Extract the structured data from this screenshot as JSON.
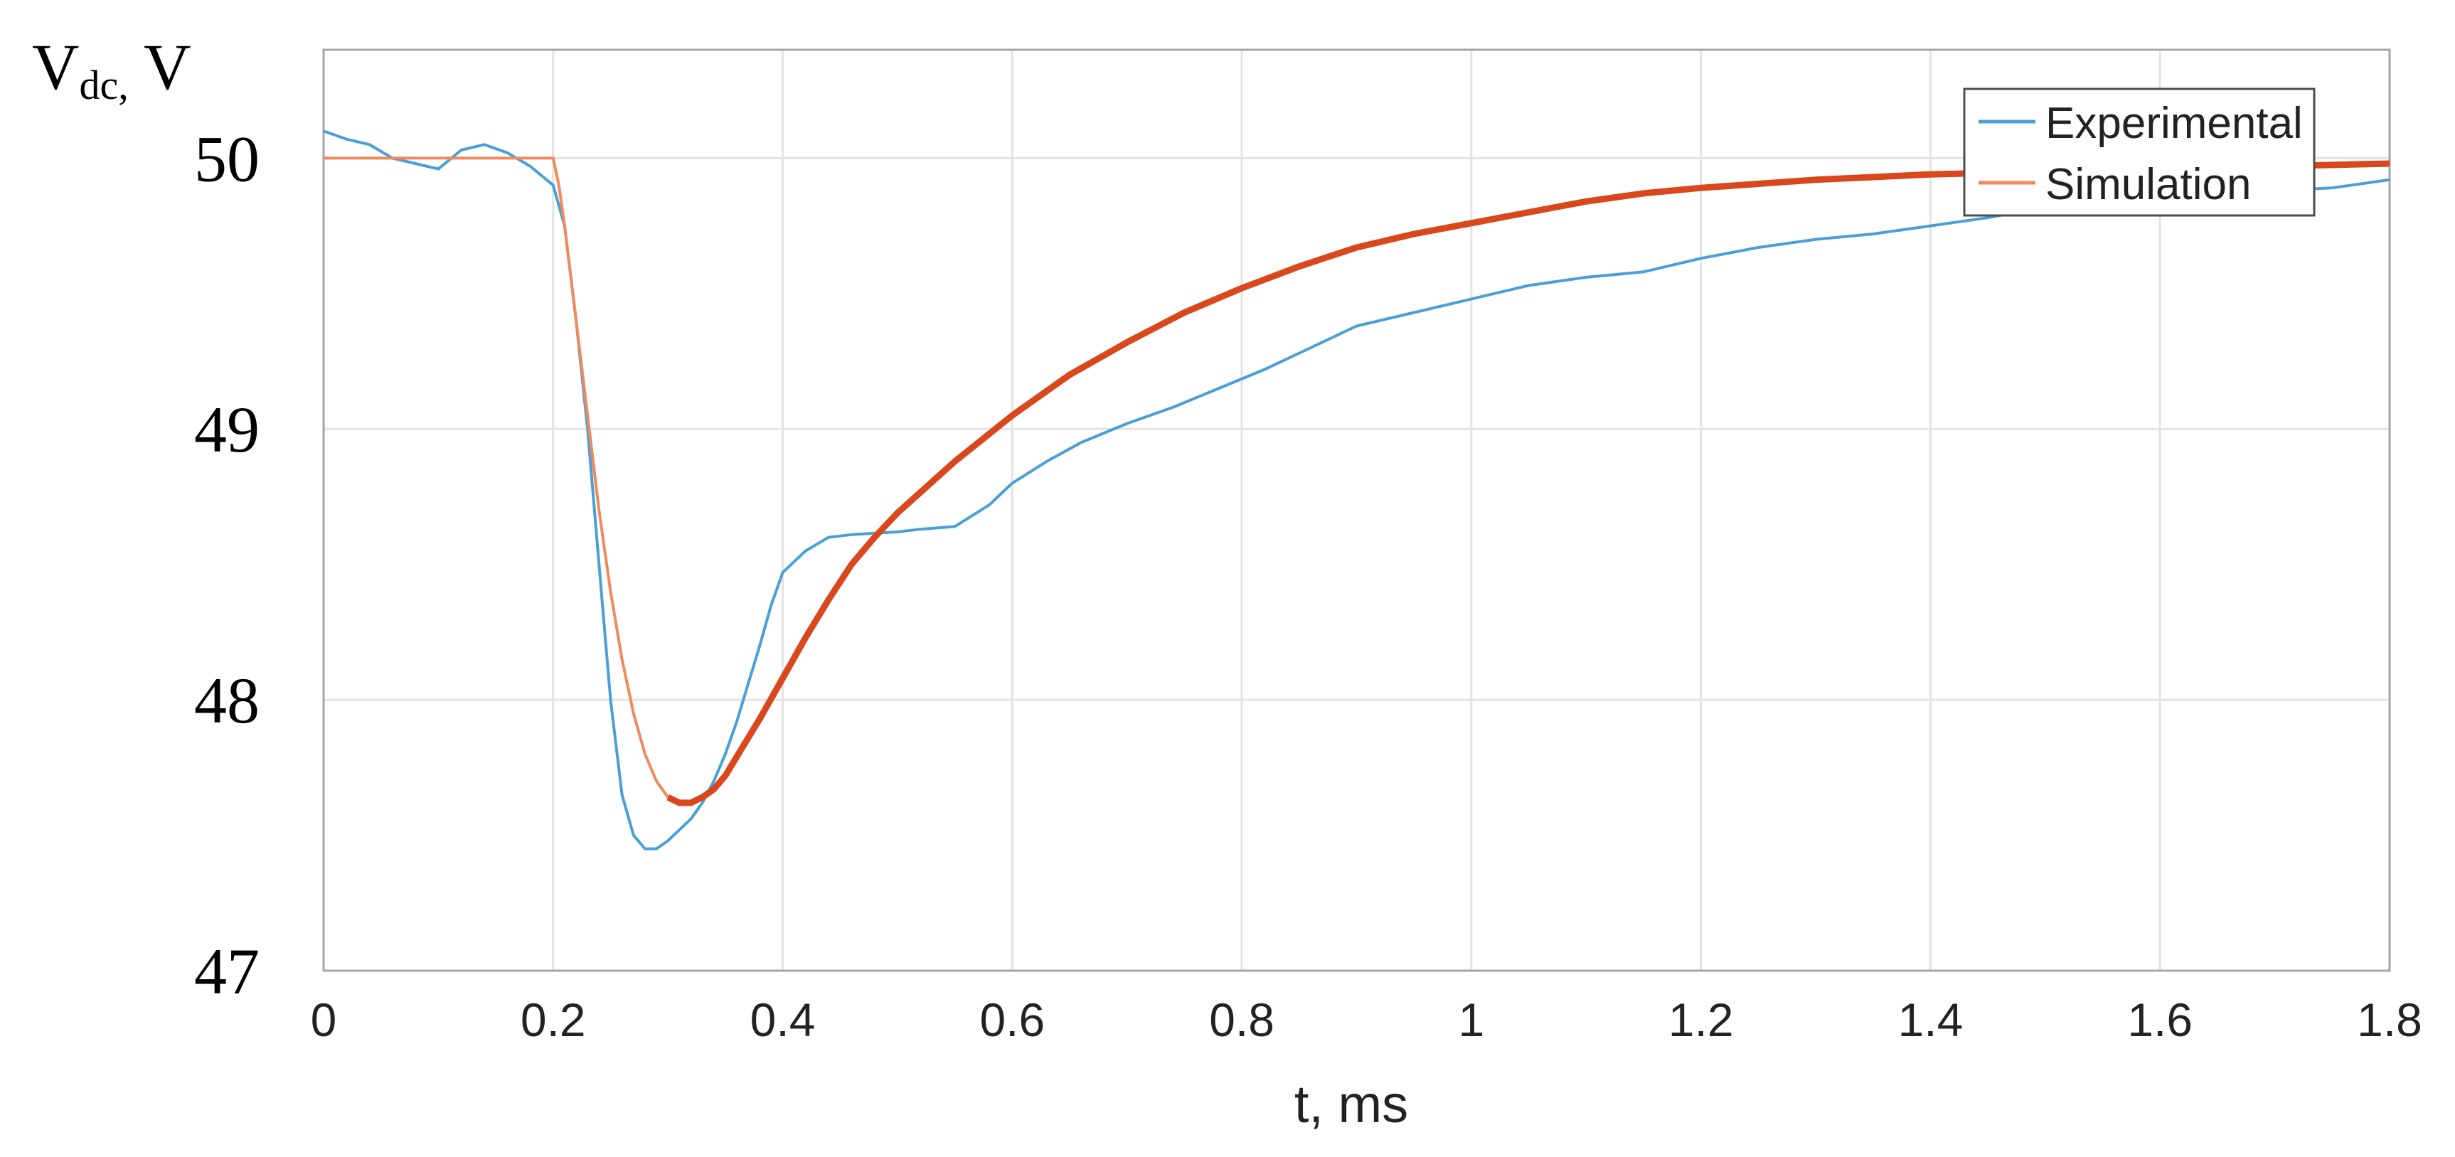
{
  "chart_data": {
    "type": "line",
    "ylabel_main": "V",
    "ylabel_sub": "dc,",
    "ylabel_unit": " V",
    "xlabel": "t, ms",
    "xlim": [
      0,
      1.8
    ],
    "ylim": [
      47,
      50.4
    ],
    "x_ticks": [
      0,
      0.2,
      0.4,
      0.6,
      0.8,
      1,
      1.2,
      1.4,
      1.6,
      1.8
    ],
    "x_tick_labels": [
      "0",
      "0.2",
      "0.4",
      "0.6",
      "0.8",
      "1",
      "1.2",
      "1.4",
      "1.6",
      "1.8"
    ],
    "y_ticks": [
      47,
      48,
      49,
      50
    ],
    "y_tick_labels": [
      "47",
      "48",
      "49",
      "50"
    ],
    "grid": true,
    "legend_position": "top-right",
    "series": [
      {
        "name": "Experimental",
        "color": "#4a9fd6",
        "points": [
          [
            0,
            50.1
          ],
          [
            0.02,
            50.07
          ],
          [
            0.04,
            50.05
          ],
          [
            0.06,
            50.0
          ],
          [
            0.08,
            49.98
          ],
          [
            0.1,
            49.96
          ],
          [
            0.12,
            50.03
          ],
          [
            0.14,
            50.05
          ],
          [
            0.16,
            50.02
          ],
          [
            0.18,
            49.97
          ],
          [
            0.2,
            49.9
          ],
          [
            0.21,
            49.75
          ],
          [
            0.22,
            49.4
          ],
          [
            0.23,
            49.0
          ],
          [
            0.24,
            48.5
          ],
          [
            0.25,
            48.0
          ],
          [
            0.26,
            47.65
          ],
          [
            0.27,
            47.5
          ],
          [
            0.28,
            47.45
          ],
          [
            0.29,
            47.45
          ],
          [
            0.3,
            47.48
          ],
          [
            0.31,
            47.52
          ],
          [
            0.32,
            47.56
          ],
          [
            0.33,
            47.62
          ],
          [
            0.34,
            47.7
          ],
          [
            0.35,
            47.8
          ],
          [
            0.36,
            47.92
          ],
          [
            0.37,
            48.06
          ],
          [
            0.38,
            48.2
          ],
          [
            0.39,
            48.35
          ],
          [
            0.4,
            48.47
          ],
          [
            0.42,
            48.55
          ],
          [
            0.44,
            48.6
          ],
          [
            0.46,
            48.61
          ],
          [
            0.5,
            48.62
          ],
          [
            0.52,
            48.63
          ],
          [
            0.55,
            48.64
          ],
          [
            0.58,
            48.72
          ],
          [
            0.6,
            48.8
          ],
          [
            0.63,
            48.88
          ],
          [
            0.66,
            48.95
          ],
          [
            0.7,
            49.02
          ],
          [
            0.74,
            49.08
          ],
          [
            0.78,
            49.15
          ],
          [
            0.82,
            49.22
          ],
          [
            0.86,
            49.3
          ],
          [
            0.9,
            49.38
          ],
          [
            0.95,
            49.43
          ],
          [
            1.0,
            49.48
          ],
          [
            1.05,
            49.53
          ],
          [
            1.1,
            49.56
          ],
          [
            1.15,
            49.58
          ],
          [
            1.2,
            49.63
          ],
          [
            1.25,
            49.67
          ],
          [
            1.3,
            49.7
          ],
          [
            1.35,
            49.72
          ],
          [
            1.4,
            49.75
          ],
          [
            1.45,
            49.78
          ],
          [
            1.5,
            49.82
          ],
          [
            1.55,
            49.84
          ],
          [
            1.6,
            49.85
          ],
          [
            1.65,
            49.87
          ],
          [
            1.7,
            49.88
          ],
          [
            1.75,
            49.89
          ],
          [
            1.8,
            49.92
          ]
        ]
      },
      {
        "name": "Simulation",
        "color": "#f08a5d",
        "color_dark": "#d9471c",
        "points": [
          [
            0,
            50.0
          ],
          [
            0.1,
            50.0
          ],
          [
            0.2,
            50.0
          ],
          [
            0.205,
            49.9
          ],
          [
            0.21,
            49.75
          ],
          [
            0.22,
            49.4
          ],
          [
            0.23,
            49.05
          ],
          [
            0.24,
            48.7
          ],
          [
            0.25,
            48.4
          ],
          [
            0.26,
            48.15
          ],
          [
            0.27,
            47.95
          ],
          [
            0.28,
            47.8
          ],
          [
            0.29,
            47.7
          ],
          [
            0.3,
            47.64
          ],
          [
            0.31,
            47.62
          ],
          [
            0.32,
            47.62
          ],
          [
            0.33,
            47.64
          ],
          [
            0.34,
            47.67
          ],
          [
            0.35,
            47.72
          ],
          [
            0.36,
            47.79
          ],
          [
            0.38,
            47.93
          ],
          [
            0.4,
            48.08
          ],
          [
            0.42,
            48.23
          ],
          [
            0.44,
            48.37
          ],
          [
            0.46,
            48.5
          ],
          [
            0.48,
            48.6
          ],
          [
            0.5,
            48.69
          ],
          [
            0.55,
            48.88
          ],
          [
            0.6,
            49.05
          ],
          [
            0.65,
            49.2
          ],
          [
            0.7,
            49.32
          ],
          [
            0.75,
            49.43
          ],
          [
            0.8,
            49.52
          ],
          [
            0.85,
            49.6
          ],
          [
            0.9,
            49.67
          ],
          [
            0.95,
            49.72
          ],
          [
            1.0,
            49.76
          ],
          [
            1.05,
            49.8
          ],
          [
            1.1,
            49.84
          ],
          [
            1.15,
            49.87
          ],
          [
            1.2,
            49.89
          ],
          [
            1.3,
            49.92
          ],
          [
            1.4,
            49.94
          ],
          [
            1.5,
            49.95
          ],
          [
            1.6,
            49.96
          ],
          [
            1.7,
            49.97
          ],
          [
            1.8,
            49.98
          ]
        ]
      }
    ]
  }
}
